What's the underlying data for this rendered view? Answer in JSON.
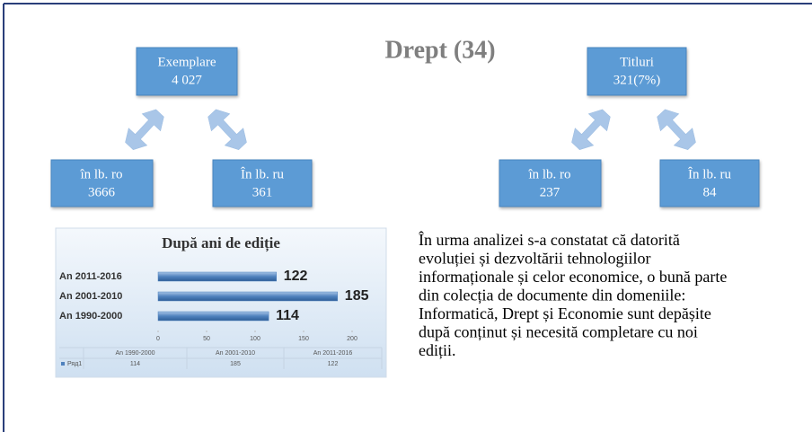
{
  "title": "Drept (34)",
  "left_tree": {
    "root": {
      "label": "Exemplare",
      "value": "4 027"
    },
    "children": [
      {
        "label": "în lb. ro",
        "value": "3666"
      },
      {
        "label": "În lb. ru",
        "value": "361"
      }
    ]
  },
  "right_tree": {
    "root": {
      "label": "Titluri",
      "value": "321(7%)"
    },
    "children": [
      {
        "label": "în lb. ro",
        "value": "237"
      },
      {
        "label": "În lb. ru",
        "value": "84"
      }
    ]
  },
  "paragraph": {
    "lines": [
      "În urma analizei s-a constatat că datorită",
      "evoluției și dezvoltării tehnologiilor",
      "informaționale și celor economice, o bună parte",
      "din colecția de documente din  domeniile:",
      "Informatică, Drept și Economie sunt depășite",
      "după conținut și necesită completare cu noi",
      "ediții."
    ]
  },
  "chart_data": {
    "type": "hbar",
    "title": "După ani de ediție",
    "categories": [
      "An 2011-2016",
      "An 2001-2010",
      "An 1990-2000"
    ],
    "series": [
      {
        "name": "Ряд1",
        "color": "#4f81bd",
        "values": [
          122,
          185,
          114
        ]
      }
    ],
    "xlim": [
      0,
      200
    ],
    "xticks": [
      0,
      50,
      100,
      150,
      200
    ],
    "data_table": true
  }
}
